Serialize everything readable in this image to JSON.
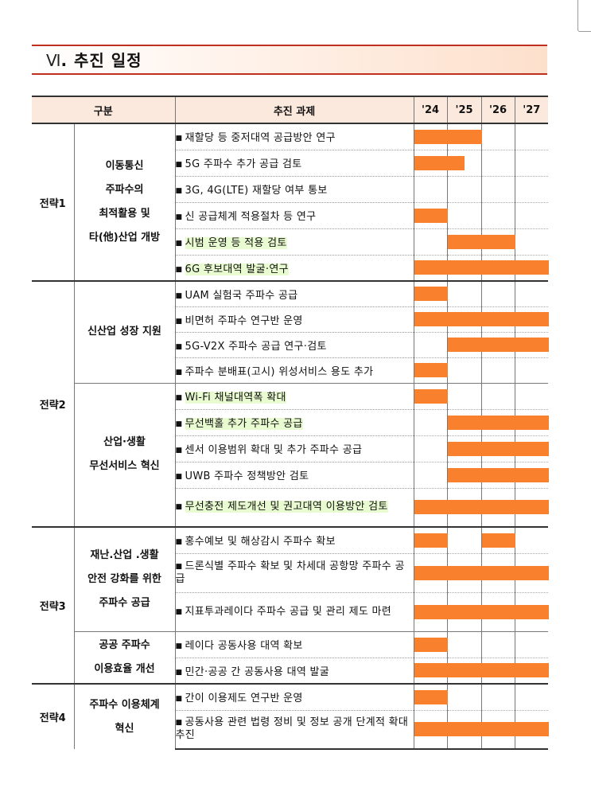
{
  "title": {
    "number": "Ⅵ",
    "text": ". 추진 일정"
  },
  "header": {
    "category": "구분",
    "task": "추진 과제",
    "years": [
      "'24",
      "'25",
      "'26",
      "'27"
    ]
  },
  "strategies": [
    {
      "label": "전략1",
      "groups": [
        {
          "lines": [
            "이동통신",
            "주파수의",
            "최적활용 및",
            "타(他)산업 개방"
          ],
          "tasks": [
            {
              "text": "재할당 등 중저대역 공급방안 연구",
              "spans": [
                [
                  0,
                  2
                ]
              ]
            },
            {
              "text": "5G 주파수 추가 공급 검토",
              "spans": [
                [
                  0,
                  1.5
                ]
              ]
            },
            {
              "text": "3G, 4G(LTE) 재할당 여부 통보",
              "spans": []
            },
            {
              "text": "신 공급체계 적용절차 등 연구",
              "spans": [
                [
                  0,
                  1
                ]
              ]
            },
            {
              "text": "시범 운영 등 적용 검토",
              "highlight": true,
              "spans": [
                [
                  1,
                  3
                ]
              ]
            },
            {
              "text": "6G 후보대역 발굴·연구",
              "highlight": true,
              "spans": [
                [
                  0,
                  4
                ]
              ]
            }
          ]
        }
      ]
    },
    {
      "label": "전략2",
      "groups": [
        {
          "lines": [
            "신산업 성장 지원"
          ],
          "tasks": [
            {
              "text": "UAM 실험국 주파수 공급",
              "spans": [
                [
                  0,
                  1
                ]
              ]
            },
            {
              "text": "비면허 주파수 연구반 운영",
              "spans": [
                [
                  0,
                  4
                ]
              ]
            },
            {
              "text": "5G-V2X 주파수 공급 연구·검토",
              "spans": [
                [
                  1,
                  4
                ]
              ]
            },
            {
              "text": "주파수 분배표(고시) 위성서비스 용도 추가",
              "spans": [
                [
                  0,
                  1
                ]
              ]
            }
          ]
        },
        {
          "lines": [
            "산업·생활",
            "무선서비스 혁신"
          ],
          "tasks": [
            {
              "text": "Wi-Fi 채널대역폭 확대",
              "highlight": true,
              "spans": [
                [
                  0,
                  1
                ]
              ]
            },
            {
              "text": "무선백홀 추가 주파수 공급",
              "highlight": true,
              "spans": [
                [
                  1,
                  4
                ]
              ]
            },
            {
              "text": "센서 이용범위 확대 및 추가 주파수 공급",
              "spans": [
                [
                  1,
                  4
                ]
              ]
            },
            {
              "text": "UWB 주파수 정책방안 검토",
              "spans": [
                [
                  1,
                  4
                ]
              ]
            },
            {
              "text": "무선충전 제도개선 및 권고대역 이용방안 검토",
              "highlight": true,
              "wrap": true,
              "spans": [
                [
                  0,
                  4
                ]
              ]
            }
          ]
        }
      ]
    },
    {
      "label": "전략3",
      "groups": [
        {
          "lines": [
            "재난.산업 .생활",
            "안전 강화를 위한",
            "주파수 공급"
          ],
          "tasks": [
            {
              "text": "홍수예보 및 해상감시 주파수 확보",
              "spans": [
                [
                  0,
                  1
                ],
                [
                  2,
                  3
                ]
              ]
            },
            {
              "text": "드론식별 주파수 확보 및 차세대 공항망 주파수 공급",
              "wrap": true,
              "spans": [
                [
                  0,
                  4
                ]
              ]
            },
            {
              "text": "지표투과레이다 주파수 공급 및 관리 제도 마련",
              "wrap": true,
              "spans": [
                [
                  0,
                  4
                ]
              ]
            }
          ]
        },
        {
          "lines": [
            "공공 주파수",
            "이용효율 개선"
          ],
          "tasks": [
            {
              "text": "레이다 공동사용 대역 확보",
              "spans": [
                [
                  0,
                  1
                ]
              ]
            },
            {
              "text": "민간·공공 간 공동사용 대역 발굴",
              "spans": [
                [
                  0,
                  4
                ]
              ]
            }
          ]
        }
      ]
    },
    {
      "label": "전략4",
      "groups": [
        {
          "lines": [
            "주파수 이용체계",
            "혁신"
          ],
          "tasks": [
            {
              "text": "간이 이용제도 연구반 운영",
              "spans": [
                [
                  0,
                  1
                ]
              ]
            },
            {
              "text": "공동사용 관련 법령 정비 및 정보 공개 단계적 확대 추진",
              "wrap": true,
              "spans": [
                [
                  0,
                  4
                ]
              ]
            }
          ]
        }
      ]
    }
  ],
  "colors": {
    "bar": "#f9812e",
    "header_bg": "#fce9de",
    "highlight": "#e9fbd0",
    "title_rule": "#c03020"
  }
}
